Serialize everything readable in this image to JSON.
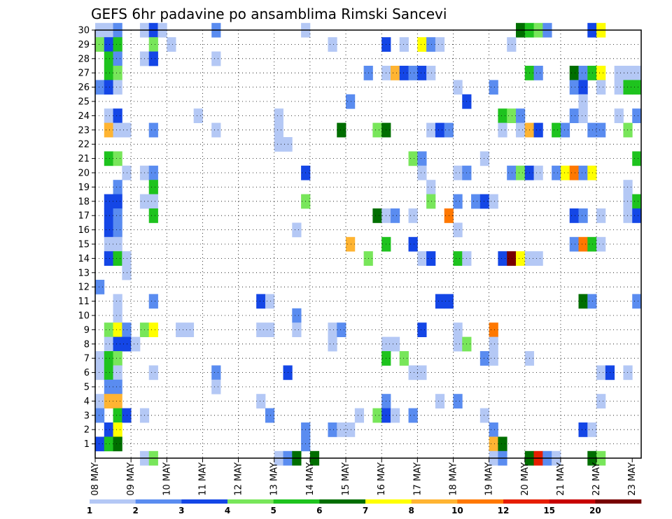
{
  "chart_data": {
    "type": "heatmap",
    "title": "GEFS 6hr padavine po ansamblima Rimski Sancevi",
    "xlabel": "",
    "ylabel": "",
    "y_ticks": [
      "1",
      "2",
      "3",
      "4",
      "5",
      "6",
      "7",
      "8",
      "9",
      "10",
      "11",
      "12",
      "13",
      "14",
      "15",
      "16",
      "17",
      "18",
      "19",
      "20",
      "21",
      "22",
      "23",
      "24",
      "25",
      "26",
      "27",
      "28",
      "29",
      "30"
    ],
    "x_ticks": [
      "08 MAY",
      "09 MAY",
      "10 MAY",
      "11 MAY",
      "12 MAY",
      "13 MAY",
      "14 MAY",
      "15 MAY",
      "16 MAY",
      "17 MAY",
      "18 MAY",
      "19 MAY",
      "20 MAY",
      "21 MAY",
      "22 MAY",
      "23 MAY"
    ],
    "x_steps_per_day": 4,
    "x_range": [
      0,
      61
    ],
    "y_range": [
      0,
      30
    ],
    "grid": true,
    "colorbar": {
      "labels": [
        "1",
        "2",
        "3",
        "4",
        "5",
        "6",
        "7",
        "8",
        "10",
        "12",
        "15",
        "20"
      ],
      "colors": [
        "#b4c8f5",
        "#5a8cf0",
        "#1446e6",
        "#78e65a",
        "#1ec31e",
        "#006e00",
        "#ffff00",
        "#ffb432",
        "#ff7800",
        "#e61e00",
        "#c80000",
        "#780000"
      ]
    },
    "cells": [
      [
        0,
        30,
        0
      ],
      [
        1,
        30,
        0
      ],
      [
        2,
        30,
        1
      ],
      [
        5,
        30,
        0
      ],
      [
        6,
        30,
        2
      ],
      [
        7,
        30,
        0
      ],
      [
        13,
        30,
        1
      ],
      [
        23,
        30,
        0
      ],
      [
        47,
        30,
        5
      ],
      [
        48,
        30,
        4
      ],
      [
        49,
        30,
        3
      ],
      [
        50,
        30,
        1
      ],
      [
        55,
        30,
        2
      ],
      [
        56,
        30,
        6
      ],
      [
        0,
        29,
        3
      ],
      [
        1,
        29,
        2
      ],
      [
        2,
        29,
        4
      ],
      [
        6,
        29,
        3
      ],
      [
        8,
        29,
        0
      ],
      [
        26,
        29,
        0
      ],
      [
        32,
        29,
        2
      ],
      [
        34,
        29,
        0
      ],
      [
        36,
        29,
        6
      ],
      [
        37,
        29,
        1
      ],
      [
        38,
        29,
        0
      ],
      [
        46,
        29,
        0
      ],
      [
        1,
        28,
        4
      ],
      [
        2,
        28,
        1
      ],
      [
        5,
        28,
        0
      ],
      [
        6,
        28,
        2
      ],
      [
        13,
        28,
        0
      ],
      [
        1,
        27,
        4
      ],
      [
        2,
        27,
        3
      ],
      [
        30,
        27,
        1
      ],
      [
        32,
        27,
        0
      ],
      [
        33,
        27,
        7
      ],
      [
        34,
        27,
        2
      ],
      [
        35,
        27,
        1
      ],
      [
        36,
        27,
        2
      ],
      [
        37,
        27,
        0
      ],
      [
        48,
        27,
        4
      ],
      [
        49,
        27,
        1
      ],
      [
        53,
        27,
        5
      ],
      [
        54,
        27,
        1
      ],
      [
        55,
        27,
        4
      ],
      [
        56,
        27,
        6
      ],
      [
        58,
        27,
        0
      ],
      [
        59,
        27,
        0
      ],
      [
        60,
        27,
        0
      ],
      [
        0,
        26,
        1
      ],
      [
        1,
        26,
        2
      ],
      [
        2,
        26,
        0
      ],
      [
        40,
        26,
        0
      ],
      [
        44,
        26,
        1
      ],
      [
        53,
        26,
        1
      ],
      [
        54,
        26,
        2
      ],
      [
        56,
        26,
        0
      ],
      [
        58,
        26,
        0
      ],
      [
        59,
        26,
        4
      ],
      [
        60,
        26,
        4
      ],
      [
        28,
        25,
        1
      ],
      [
        41,
        25,
        2
      ],
      [
        54,
        25,
        0
      ],
      [
        1,
        24,
        0
      ],
      [
        2,
        24,
        2
      ],
      [
        11,
        24,
        0
      ],
      [
        20,
        24,
        0
      ],
      [
        45,
        24,
        4
      ],
      [
        46,
        24,
        3
      ],
      [
        47,
        24,
        1
      ],
      [
        53,
        24,
        1
      ],
      [
        54,
        24,
        0
      ],
      [
        58,
        24,
        0
      ],
      [
        60,
        24,
        1
      ],
      [
        1,
        23,
        7
      ],
      [
        2,
        23,
        0
      ],
      [
        3,
        23,
        0
      ],
      [
        6,
        23,
        1
      ],
      [
        13,
        23,
        0
      ],
      [
        20,
        23,
        0
      ],
      [
        27,
        23,
        5
      ],
      [
        31,
        23,
        3
      ],
      [
        32,
        23,
        5
      ],
      [
        37,
        23,
        0
      ],
      [
        38,
        23,
        2
      ],
      [
        39,
        23,
        1
      ],
      [
        45,
        23,
        0
      ],
      [
        47,
        23,
        0
      ],
      [
        48,
        23,
        7
      ],
      [
        49,
        23,
        2
      ],
      [
        51,
        23,
        4
      ],
      [
        52,
        23,
        1
      ],
      [
        55,
        23,
        1
      ],
      [
        56,
        23,
        1
      ],
      [
        59,
        23,
        3
      ],
      [
        20,
        22,
        0
      ],
      [
        21,
        22,
        0
      ],
      [
        1,
        21,
        4
      ],
      [
        2,
        21,
        3
      ],
      [
        35,
        21,
        3
      ],
      [
        36,
        21,
        1
      ],
      [
        43,
        21,
        0
      ],
      [
        60,
        21,
        4
      ],
      [
        3,
        20,
        0
      ],
      [
        5,
        20,
        0
      ],
      [
        6,
        20,
        1
      ],
      [
        23,
        20,
        2
      ],
      [
        36,
        20,
        0
      ],
      [
        40,
        20,
        0
      ],
      [
        41,
        20,
        1
      ],
      [
        46,
        20,
        1
      ],
      [
        47,
        20,
        3
      ],
      [
        48,
        20,
        2
      ],
      [
        49,
        20,
        0
      ],
      [
        51,
        20,
        1
      ],
      [
        52,
        20,
        6
      ],
      [
        53,
        20,
        8
      ],
      [
        54,
        20,
        1
      ],
      [
        55,
        20,
        6
      ],
      [
        2,
        19,
        1
      ],
      [
        6,
        19,
        4
      ],
      [
        37,
        19,
        0
      ],
      [
        59,
        19,
        0
      ],
      [
        1,
        18,
        2
      ],
      [
        2,
        18,
        2
      ],
      [
        5,
        18,
        0
      ],
      [
        6,
        18,
        0
      ],
      [
        23,
        18,
        3
      ],
      [
        37,
        18,
        3
      ],
      [
        40,
        18,
        1
      ],
      [
        42,
        18,
        1
      ],
      [
        43,
        18,
        2
      ],
      [
        44,
        18,
        0
      ],
      [
        59,
        18,
        0
      ],
      [
        60,
        18,
        4
      ],
      [
        1,
        17,
        2
      ],
      [
        2,
        17,
        1
      ],
      [
        6,
        17,
        4
      ],
      [
        31,
        17,
        5
      ],
      [
        32,
        17,
        0
      ],
      [
        33,
        17,
        1
      ],
      [
        35,
        17,
        0
      ],
      [
        39,
        17,
        8
      ],
      [
        53,
        17,
        2
      ],
      [
        54,
        17,
        1
      ],
      [
        56,
        17,
        0
      ],
      [
        59,
        17,
        0
      ],
      [
        60,
        17,
        2
      ],
      [
        1,
        16,
        2
      ],
      [
        2,
        16,
        1
      ],
      [
        22,
        16,
        0
      ],
      [
        40,
        16,
        0
      ],
      [
        1,
        15,
        0
      ],
      [
        2,
        15,
        0
      ],
      [
        28,
        15,
        7
      ],
      [
        32,
        15,
        4
      ],
      [
        35,
        15,
        2
      ],
      [
        53,
        15,
        1
      ],
      [
        54,
        15,
        8
      ],
      [
        55,
        15,
        4
      ],
      [
        56,
        15,
        0
      ],
      [
        1,
        14,
        2
      ],
      [
        2,
        14,
        4
      ],
      [
        3,
        14,
        0
      ],
      [
        30,
        14,
        3
      ],
      [
        36,
        14,
        0
      ],
      [
        37,
        14,
        2
      ],
      [
        40,
        14,
        4
      ],
      [
        41,
        14,
        0
      ],
      [
        45,
        14,
        2
      ],
      [
        46,
        14,
        11
      ],
      [
        47,
        14,
        6
      ],
      [
        48,
        14,
        0
      ],
      [
        49,
        14,
        0
      ],
      [
        3,
        13,
        0
      ],
      [
        0,
        12,
        1
      ],
      [
        2,
        11,
        0
      ],
      [
        6,
        11,
        1
      ],
      [
        18,
        11,
        2
      ],
      [
        19,
        11,
        0
      ],
      [
        38,
        11,
        2
      ],
      [
        39,
        11,
        2
      ],
      [
        54,
        11,
        5
      ],
      [
        55,
        11,
        1
      ],
      [
        60,
        11,
        1
      ],
      [
        2,
        10,
        0
      ],
      [
        22,
        10,
        1
      ],
      [
        1,
        9,
        3
      ],
      [
        2,
        9,
        6
      ],
      [
        3,
        9,
        1
      ],
      [
        5,
        9,
        3
      ],
      [
        6,
        9,
        6
      ],
      [
        9,
        9,
        0
      ],
      [
        10,
        9,
        0
      ],
      [
        18,
        9,
        0
      ],
      [
        19,
        9,
        0
      ],
      [
        22,
        9,
        0
      ],
      [
        26,
        9,
        0
      ],
      [
        27,
        9,
        1
      ],
      [
        36,
        9,
        2
      ],
      [
        40,
        9,
        0
      ],
      [
        44,
        9,
        8
      ],
      [
        1,
        8,
        0
      ],
      [
        2,
        8,
        2
      ],
      [
        3,
        8,
        2
      ],
      [
        4,
        8,
        0
      ],
      [
        26,
        8,
        0
      ],
      [
        32,
        8,
        0
      ],
      [
        33,
        8,
        0
      ],
      [
        40,
        8,
        0
      ],
      [
        41,
        8,
        3
      ],
      [
        44,
        8,
        0
      ],
      [
        0,
        7,
        0
      ],
      [
        1,
        7,
        4
      ],
      [
        2,
        7,
        3
      ],
      [
        32,
        7,
        4
      ],
      [
        34,
        7,
        3
      ],
      [
        43,
        7,
        1
      ],
      [
        44,
        7,
        0
      ],
      [
        48,
        7,
        0
      ],
      [
        0,
        6,
        0
      ],
      [
        1,
        6,
        4
      ],
      [
        2,
        6,
        0
      ],
      [
        6,
        6,
        0
      ],
      [
        13,
        6,
        1
      ],
      [
        21,
        6,
        2
      ],
      [
        35,
        6,
        0
      ],
      [
        36,
        6,
        0
      ],
      [
        56,
        6,
        0
      ],
      [
        57,
        6,
        2
      ],
      [
        59,
        6,
        0
      ],
      [
        1,
        5,
        1
      ],
      [
        2,
        5,
        1
      ],
      [
        13,
        5,
        0
      ],
      [
        0,
        4,
        0
      ],
      [
        1,
        4,
        7
      ],
      [
        2,
        4,
        7
      ],
      [
        18,
        4,
        0
      ],
      [
        32,
        4,
        1
      ],
      [
        38,
        4,
        0
      ],
      [
        40,
        4,
        1
      ],
      [
        56,
        4,
        0
      ],
      [
        0,
        3,
        1
      ],
      [
        2,
        3,
        4
      ],
      [
        3,
        3,
        2
      ],
      [
        5,
        3,
        0
      ],
      [
        19,
        3,
        1
      ],
      [
        29,
        3,
        0
      ],
      [
        31,
        3,
        3
      ],
      [
        32,
        3,
        2
      ],
      [
        33,
        3,
        0
      ],
      [
        35,
        3,
        1
      ],
      [
        43,
        3,
        0
      ],
      [
        1,
        2,
        2
      ],
      [
        2,
        2,
        6
      ],
      [
        23,
        2,
        1
      ],
      [
        26,
        2,
        1
      ],
      [
        27,
        2,
        0
      ],
      [
        28,
        2,
        0
      ],
      [
        44,
        2,
        1
      ],
      [
        54,
        2,
        2
      ],
      [
        55,
        2,
        0
      ],
      [
        0,
        1,
        2
      ],
      [
        1,
        1,
        4
      ],
      [
        2,
        1,
        5
      ],
      [
        23,
        1,
        1
      ],
      [
        44,
        1,
        7
      ],
      [
        45,
        1,
        5
      ],
      [
        5,
        0,
        0
      ],
      [
        6,
        0,
        3
      ],
      [
        20,
        0,
        0
      ],
      [
        21,
        0,
        1
      ],
      [
        22,
        0,
        5
      ],
      [
        24,
        0,
        5
      ],
      [
        44,
        0,
        0
      ],
      [
        45,
        0,
        1
      ],
      [
        48,
        0,
        5
      ],
      [
        49,
        0,
        9
      ],
      [
        50,
        0,
        1
      ],
      [
        51,
        0,
        0
      ],
      [
        55,
        0,
        5
      ],
      [
        56,
        0,
        3
      ]
    ]
  }
}
